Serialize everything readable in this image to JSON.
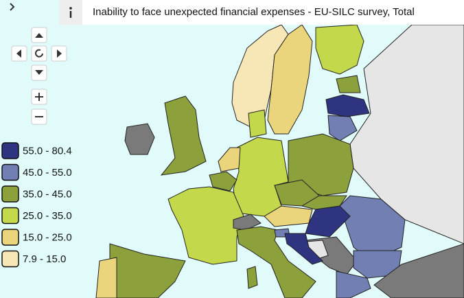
{
  "header": {
    "title": "Inability to face unexpected financial expenses - EU-SILC survey, Total"
  },
  "legend": {
    "items": [
      {
        "label": "55.0 - 80.4",
        "color": "#2f3480"
      },
      {
        "label": "45.0 - 55.0",
        "color": "#717fb3"
      },
      {
        "label": "35.0 - 45.0",
        "color": "#8ca03c"
      },
      {
        "label": "25.0 - 35.0",
        "color": "#c4d84c"
      },
      {
        "label": "15.0 - 25.0",
        "color": "#ebd57c"
      },
      {
        "label": "7.9 - 15.0",
        "color": "#f7e7b6"
      }
    ]
  }
}
